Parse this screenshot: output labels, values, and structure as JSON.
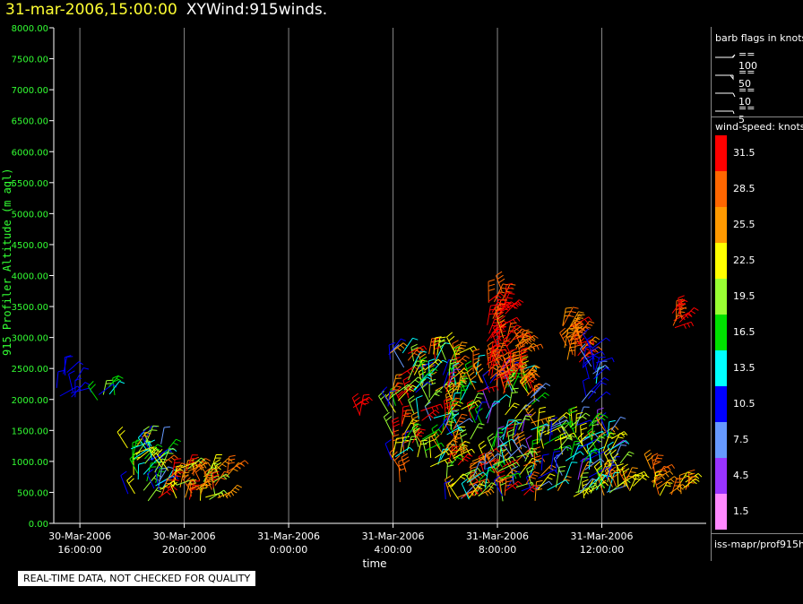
{
  "header": {
    "date": "31-mar-2006,15:00:00",
    "name": "XYWind:915winds."
  },
  "chart_data": {
    "type": "wind-barb time-height",
    "ylabel": "915 Profiler Altitude (m agl)",
    "xlabel": "time",
    "ylim": [
      0,
      8000
    ],
    "yticks": [
      "0.00",
      "500.00",
      "1000.00",
      "1500.00",
      "2000.00",
      "2500.00",
      "3000.00",
      "3500.00",
      "4000.00",
      "4500.00",
      "5000.00",
      "5500.00",
      "6000.00",
      "6500.00",
      "7000.00",
      "7500.00",
      "8000.00"
    ],
    "xticks": [
      {
        "h": 16,
        "l1": "30-Mar-2006",
        "l2": "16:00:00"
      },
      {
        "h": 20,
        "l1": "30-Mar-2006",
        "l2": "20:00:00"
      },
      {
        "h": 24,
        "l1": "31-Mar-2006",
        "l2": "0:00:00"
      },
      {
        "h": 28,
        "l1": "31-Mar-2006",
        "l2": "4:00:00"
      },
      {
        "h": 32,
        "l1": "31-Mar-2006",
        "l2": "8:00:00"
      },
      {
        "h": 36,
        "l1": "31-Mar-2006",
        "l2": "12:00:00"
      }
    ],
    "clusters": [
      {
        "t0": 15.0,
        "t1": 16.0,
        "h0": 1950,
        "h1": 2450,
        "s": [
          9,
          12
        ],
        "n": 10
      },
      {
        "t0": 16.3,
        "t1": 17.8,
        "h0": 1950,
        "h1": 2250,
        "s": [
          9,
          20
        ],
        "n": 6
      },
      {
        "t0": 17.7,
        "t1": 19.2,
        "h0": 350,
        "h1": 1300,
        "s": [
          8,
          26
        ],
        "n": 40
      },
      {
        "t0": 19.0,
        "t1": 21.7,
        "h0": 350,
        "h1": 950,
        "s": [
          20,
          31
        ],
        "n": 50
      },
      {
        "t0": 26.4,
        "t1": 26.8,
        "h0": 1700,
        "h1": 2000,
        "s": [
          28,
          32
        ],
        "n": 3
      },
      {
        "t0": 27.9,
        "t1": 28.5,
        "h0": 600,
        "h1": 900,
        "s": [
          26,
          30
        ],
        "n": 3
      },
      {
        "t0": 27.8,
        "t1": 30.5,
        "h0": 900,
        "h1": 2800,
        "s": [
          8,
          33
        ],
        "n": 120
      },
      {
        "t0": 30.0,
        "t1": 33.5,
        "h0": 350,
        "h1": 2500,
        "s": [
          5,
          33
        ],
        "n": 160
      },
      {
        "t0": 31.6,
        "t1": 32.3,
        "h0": 2200,
        "h1": 3800,
        "s": [
          28,
          33
        ],
        "n": 40
      },
      {
        "t0": 32.2,
        "t1": 33.0,
        "h0": 2200,
        "h1": 3000,
        "s": [
          25,
          31
        ],
        "n": 30
      },
      {
        "t0": 33.5,
        "t1": 36.5,
        "h0": 400,
        "h1": 1600,
        "s": [
          5,
          25
        ],
        "n": 100
      },
      {
        "t0": 34.4,
        "t1": 35.4,
        "h0": 2600,
        "h1": 3200,
        "s": [
          25,
          33
        ],
        "n": 25
      },
      {
        "t0": 35.2,
        "t1": 35.8,
        "h0": 1700,
        "h1": 2900,
        "s": [
          8,
          14
        ],
        "n": 20
      },
      {
        "t0": 36.3,
        "t1": 37.2,
        "h0": 500,
        "h1": 1000,
        "s": [
          20,
          30
        ],
        "n": 12
      },
      {
        "t0": 37.6,
        "t1": 39.4,
        "h0": 400,
        "h1": 900,
        "s": [
          22,
          30
        ],
        "n": 18
      },
      {
        "t0": 38.6,
        "t1": 39.1,
        "h0": 3150,
        "h1": 3400,
        "s": [
          28,
          32
        ],
        "n": 8
      }
    ]
  },
  "legend": {
    "barb_title": "barb flags in knots",
    "barbs": [
      {
        "kind": "pennant",
        "label": "== 100"
      },
      {
        "kind": "half-pennant",
        "label": "== 50"
      },
      {
        "kind": "full",
        "label": "== 10"
      },
      {
        "kind": "half",
        "label": "== 5"
      }
    ],
    "speed_title": "wind-speed: knots",
    "colorbar": [
      {
        "label": "31.5",
        "color": "#ff0000"
      },
      {
        "label": "28.5",
        "color": "#ff6600"
      },
      {
        "label": "25.5",
        "color": "#ff9900"
      },
      {
        "label": "22.5",
        "color": "#ffff00"
      },
      {
        "label": "19.5",
        "color": "#99ff33"
      },
      {
        "label": "16.5",
        "color": "#00e000"
      },
      {
        "label": "13.5",
        "color": "#00ffff"
      },
      {
        "label": "10.5",
        "color": "#0000ff"
      },
      {
        "label": "7.5",
        "color": "#6699ff"
      },
      {
        "label": "4.5",
        "color": "#9933ff"
      },
      {
        "label": "1.5",
        "color": "#ff88ff"
      }
    ],
    "source": "iss-mapr/prof915h"
  },
  "footer": "REAL-TIME DATA, NOT CHECKED FOR QUALITY"
}
